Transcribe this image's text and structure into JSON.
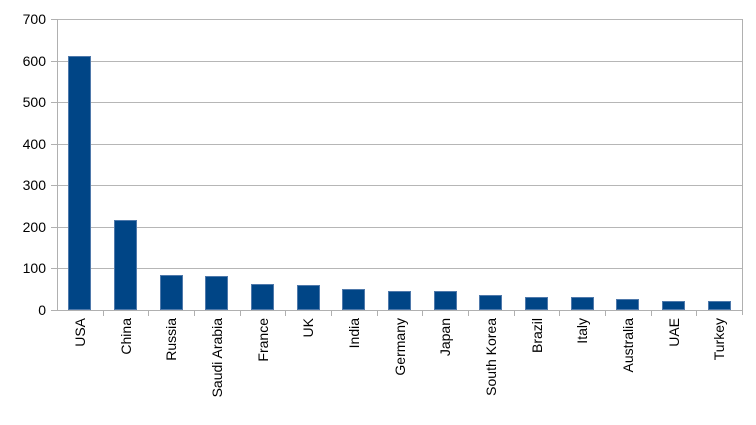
{
  "chart_data": {
    "type": "bar",
    "title": "",
    "xlabel": "",
    "ylabel": "",
    "categories": [
      "USA",
      "China",
      "Russia",
      "Saudi Arabia",
      "France",
      "UK",
      "India",
      "Germany",
      "Japan",
      "South Korea",
      "Brazil",
      "Italy",
      "Australia",
      "UAE",
      "Turkey"
    ],
    "values": [
      610,
      216,
      84.5,
      80.8,
      62.3,
      60.5,
      50,
      46.5,
      45.8,
      36.7,
      31.7,
      30.9,
      25.4,
      22.8,
      22.6
    ],
    "ylim": [
      0,
      700
    ],
    "ytick_step": 100,
    "ytick_labels": [
      "0",
      "100",
      "200",
      "300",
      "400",
      "500",
      "600",
      "700"
    ],
    "grid": true,
    "legend": false,
    "colors": {
      "bar_fill": "#004586",
      "bar_border": "#4f79ab",
      "gridline": "#b6b6b6",
      "axis": "#b0b0b0",
      "text": "#000000",
      "background": "#ffffff"
    }
  }
}
